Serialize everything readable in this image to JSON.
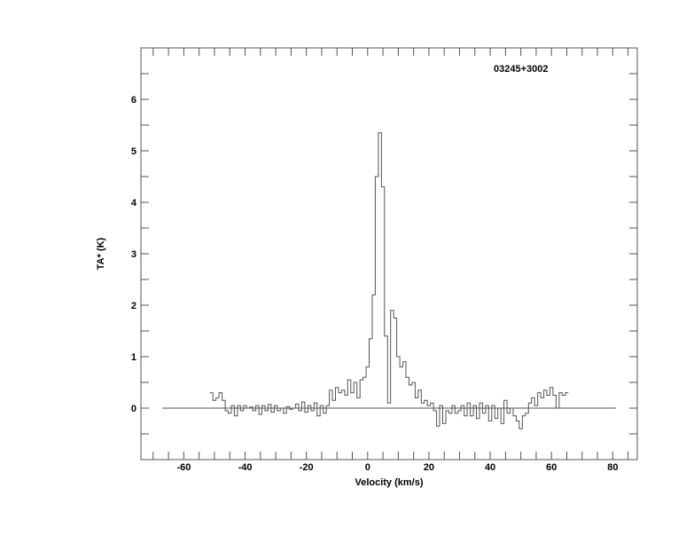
{
  "chart_data": {
    "type": "line",
    "style": "histogram-step",
    "title": "03245+3002",
    "xlabel": "Velocity (km/s)",
    "ylabel": "TA* (K)",
    "xlim": [
      -74,
      88
    ],
    "ylim": [
      -1,
      7
    ],
    "xticks": [
      -60,
      -40,
      -20,
      0,
      20,
      40,
      60,
      80
    ],
    "yticks": [
      0,
      1,
      2,
      3,
      4,
      5,
      6
    ],
    "grid": false,
    "baseline": {
      "y": 0,
      "x_range": [
        -67,
        81
      ]
    },
    "line_color": "#555555",
    "x": [
      -51,
      -50,
      -49,
      -48,
      -47,
      -46,
      -45,
      -44,
      -43,
      -42,
      -41,
      -40,
      -39,
      -38,
      -37,
      -36,
      -35,
      -34,
      -33,
      -32,
      -31,
      -30,
      -29,
      -28,
      -27,
      -26,
      -25,
      -24,
      -23,
      -22,
      -21,
      -20,
      -19,
      -18,
      -17,
      -16,
      -15,
      -14,
      -13,
      -12,
      -11,
      -10,
      -9,
      -8,
      -7,
      -6,
      -5,
      -4,
      -3,
      -2,
      -1,
      0,
      1,
      2,
      3,
      4,
      5,
      6,
      7,
      8,
      9,
      10,
      11,
      12,
      13,
      14,
      15,
      16,
      17,
      18,
      19,
      20,
      21,
      22,
      23,
      24,
      25,
      26,
      27,
      28,
      29,
      30,
      31,
      32,
      33,
      34,
      35,
      36,
      37,
      38,
      39,
      40,
      41,
      42,
      43,
      44,
      45,
      46,
      47,
      48,
      49,
      50,
      51,
      52,
      53,
      54,
      55,
      56,
      57,
      58,
      59,
      60,
      61,
      62,
      63,
      64,
      65
    ],
    "y": [
      0.3,
      0.15,
      0.2,
      0.3,
      0.15,
      -0.05,
      -0.1,
      0.05,
      -0.15,
      0.05,
      -0.05,
      0.05,
      0.0,
      0.02,
      -0.05,
      0.05,
      -0.12,
      0.05,
      -0.05,
      0.07,
      -0.08,
      0.05,
      -0.05,
      0.0,
      -0.1,
      0.03,
      -0.02,
      0.0,
      0.08,
      -0.05,
      0.12,
      -0.08,
      0.05,
      -0.05,
      0.1,
      -0.15,
      0.05,
      -0.1,
      0.05,
      0.35,
      0.15,
      0.4,
      0.3,
      0.35,
      0.25,
      0.55,
      0.3,
      0.5,
      0.2,
      0.55,
      0.6,
      0.8,
      1.35,
      2.2,
      4.5,
      5.35,
      4.3,
      1.4,
      0.1,
      1.9,
      1.75,
      1.0,
      0.8,
      0.9,
      0.6,
      0.45,
      0.5,
      0.2,
      0.35,
      0.1,
      0.15,
      0.05,
      0.1,
      -0.05,
      -0.35,
      0.05,
      -0.3,
      -0.05,
      -0.1,
      0.05,
      -0.1,
      -0.05,
      0.05,
      -0.15,
      0.1,
      -0.15,
      0.05,
      -0.2,
      0.1,
      -0.1,
      0.05,
      -0.25,
      0.05,
      -0.2,
      0.0,
      -0.3,
      0.15,
      -0.1,
      0.0,
      -0.15,
      -0.25,
      -0.4,
      -0.15,
      -0.1,
      0.1,
      0.2,
      0.05,
      0.3,
      0.2,
      0.35,
      0.25,
      0.4,
      0.25,
      0.0,
      0.3,
      0.25,
      0.3
    ]
  }
}
